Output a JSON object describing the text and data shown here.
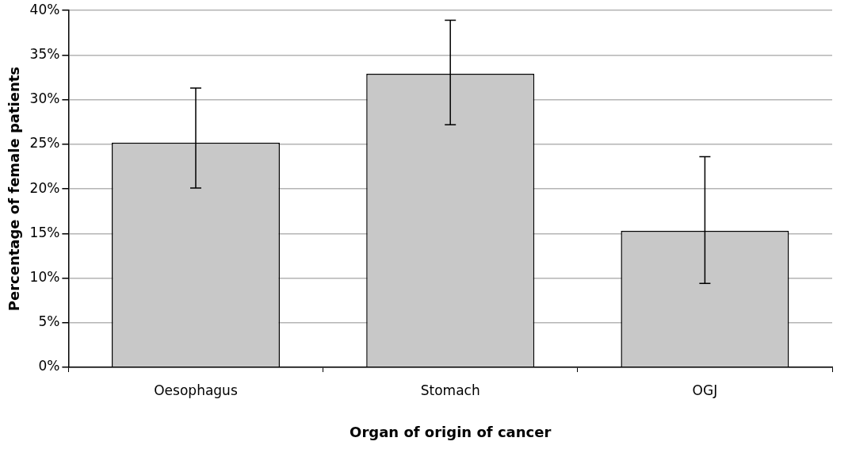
{
  "chart_data": {
    "type": "bar",
    "xlabel": "Organ of origin of cancer",
    "ylabel": "Percentage of female patients",
    "categories": [
      "Oesophagus",
      "Stomach",
      "OGJ"
    ],
    "values": [
      25.2,
      32.9,
      15.3
    ],
    "errors": [
      [
        20.1,
        31.3
      ],
      [
        27.2,
        38.9
      ],
      [
        9.4,
        23.6
      ]
    ],
    "color": "#c8c8c8",
    "ylim": [
      0,
      40
    ],
    "yticks": [
      {
        "value": 0,
        "label": "0%"
      },
      {
        "value": 5,
        "label": "5%"
      },
      {
        "value": 10,
        "label": "10%"
      },
      {
        "value": 15,
        "label": "15%"
      },
      {
        "value": 20,
        "label": "20%"
      },
      {
        "value": 25,
        "label": "25%"
      },
      {
        "value": 30,
        "label": "30%"
      },
      {
        "value": 35,
        "label": "35%"
      },
      {
        "value": 40,
        "label": "40%"
      }
    ],
    "grid": "y",
    "legend": false
  }
}
